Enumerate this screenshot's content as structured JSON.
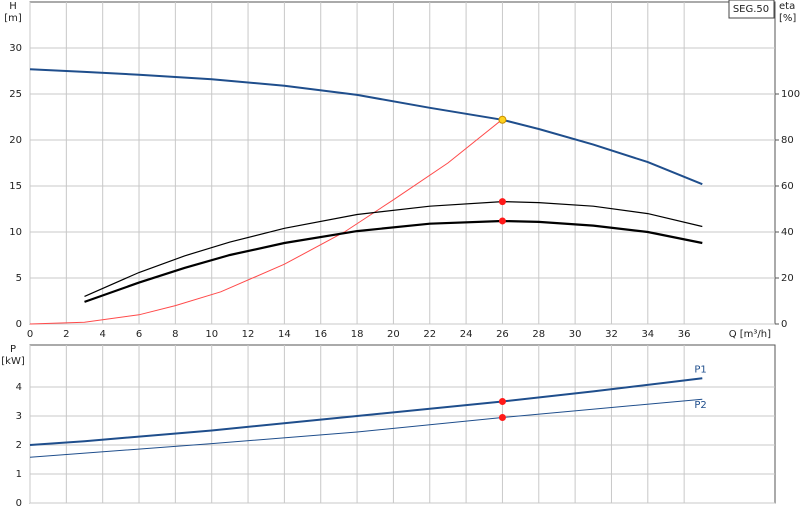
{
  "chart_data": [
    {
      "type": "line",
      "badge": "SEG.50",
      "ylabel": "H",
      "yunit": "[m]",
      "y2label": "eta",
      "y2unit": "[%]",
      "xlabel": "Q [m³/h]",
      "xlim": [
        0,
        41
      ],
      "xticks": [
        0,
        2,
        4,
        6,
        8,
        10,
        12,
        14,
        16,
        18,
        20,
        22,
        24,
        26,
        28,
        30,
        32,
        34,
        36
      ],
      "ylim": [
        0,
        35
      ],
      "yticks": [
        0,
        5,
        10,
        15,
        20,
        25,
        30
      ],
      "y2lim": [
        0,
        140
      ],
      "y2ticks": [
        0,
        20,
        40,
        60,
        80,
        100
      ],
      "grid": true,
      "series": [
        {
          "color": "#1f4e8c",
          "width": 2,
          "x": [
            0,
            3,
            6,
            10,
            14,
            18,
            22,
            26,
            28,
            31,
            34,
            37
          ],
          "values": [
            27.7,
            27.4,
            27.1,
            26.6,
            25.9,
            24.9,
            23.5,
            22.2,
            21.2,
            19.5,
            17.6,
            15.2
          ]
        },
        {
          "color": "#ff4a4a",
          "width": 1,
          "axis": "y2",
          "x": [
            0,
            3,
            6,
            8,
            10.5,
            14,
            17.3,
            20,
            23,
            26
          ],
          "values": [
            0,
            0.8,
            4,
            8,
            14,
            26,
            40,
            54,
            70,
            89
          ]
        },
        {
          "color": "#000000",
          "width": 1.2,
          "axis": "y2",
          "x": [
            3,
            6,
            8.5,
            11,
            14,
            18,
            22,
            26,
            28,
            31,
            34,
            37
          ],
          "values": [
            12,
            22.4,
            29.6,
            35.6,
            41.6,
            47.6,
            51.2,
            53.2,
            52.8,
            51.2,
            48,
            42.4
          ]
        },
        {
          "color": "#000000",
          "width": 2.2,
          "axis": "y2",
          "x": [
            3,
            6,
            8.5,
            11,
            14,
            18,
            22,
            26,
            28,
            31,
            34,
            37
          ],
          "values": [
            9.6,
            18,
            24.4,
            30,
            35.2,
            40.4,
            43.6,
            44.8,
            44.4,
            42.8,
            40,
            35.2
          ]
        }
      ],
      "markers": [
        {
          "x": 26,
          "y": 22.2,
          "color": "#ffd21f"
        },
        {
          "x": 26,
          "y": 53.2,
          "axis": "y2",
          "color": "#ff1a1a"
        },
        {
          "x": 26,
          "y": 44.8,
          "axis": "y2",
          "color": "#ff1a1a"
        }
      ]
    },
    {
      "type": "line",
      "ylabel": "P",
      "yunit": "[kW]",
      "xlim": [
        0,
        41
      ],
      "xticks": [
        0,
        2,
        4,
        6,
        8,
        10,
        12,
        14,
        16,
        18,
        20,
        22,
        24,
        26,
        28,
        30,
        32,
        34,
        36
      ],
      "ylim": [
        0,
        5.45
      ],
      "yticks": [
        0,
        1,
        2,
        3,
        4
      ],
      "grid": true,
      "series": [
        {
          "name": "P1",
          "color": "#1f4e8c",
          "width": 2,
          "x": [
            0,
            3,
            10,
            18,
            26,
            31,
            37
          ],
          "values": [
            2.0,
            2.13,
            2.5,
            3.0,
            3.5,
            3.85,
            4.3
          ]
        },
        {
          "name": "P2",
          "color": "#1f4e8c",
          "width": 1,
          "x": [
            0,
            10,
            18,
            26,
            37
          ],
          "values": [
            1.58,
            2.05,
            2.45,
            2.95,
            3.58
          ]
        }
      ],
      "markers": [
        {
          "x": 26,
          "y": 3.5,
          "color": "#ff1a1a"
        },
        {
          "x": 26,
          "y": 2.95,
          "color": "#ff1a1a"
        }
      ]
    }
  ]
}
